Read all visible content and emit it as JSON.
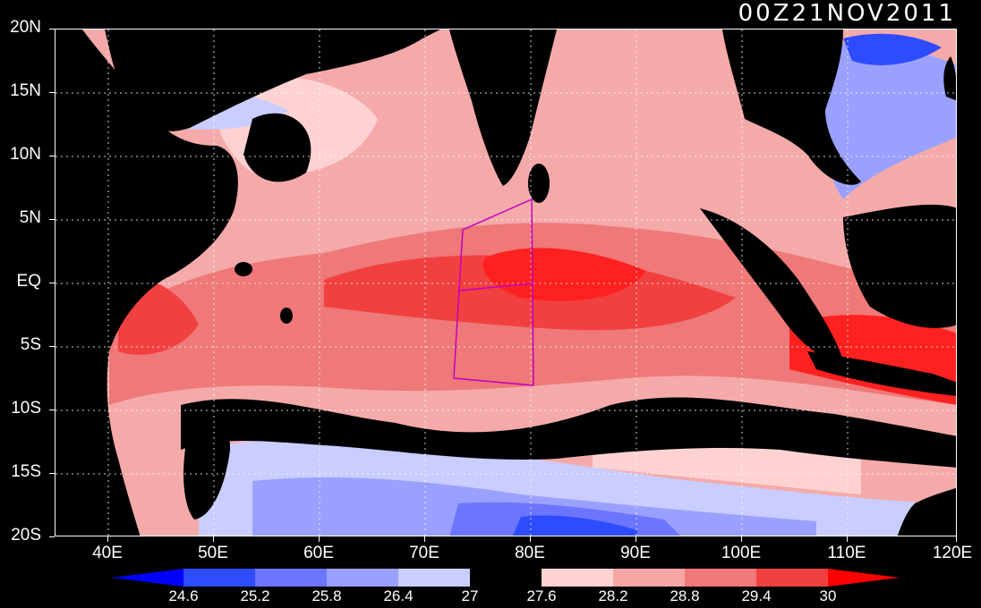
{
  "map": {
    "title": "00Z21NOV2011",
    "lat_labels": [
      "20N",
      "15N",
      "10N",
      "5N",
      "EQ",
      "5S",
      "10S",
      "15S",
      "20S"
    ],
    "lon_labels": [
      "40E",
      "50E",
      "60E",
      "70E",
      "80E",
      "90E",
      "100E",
      "110E",
      "120E"
    ],
    "colorbar": {
      "levels": [
        "24.6",
        "25.2",
        "25.8",
        "26.4",
        "27",
        "27.6",
        "28.2",
        "28.8",
        "29.4",
        "30"
      ],
      "colors": [
        "#0000ff",
        "#2d4bff",
        "#6b75ff",
        "#9aa0ff",
        "#c9cdff",
        "#000000",
        "#ffd2d2",
        "#f7a6a6",
        "#ef7878",
        "#f14040",
        "#ff0000"
      ]
    },
    "palette": {
      "land": "#000000",
      "coast": "#a020f0",
      "box": "#c000c0",
      "grid": "#ffffff"
    }
  }
}
